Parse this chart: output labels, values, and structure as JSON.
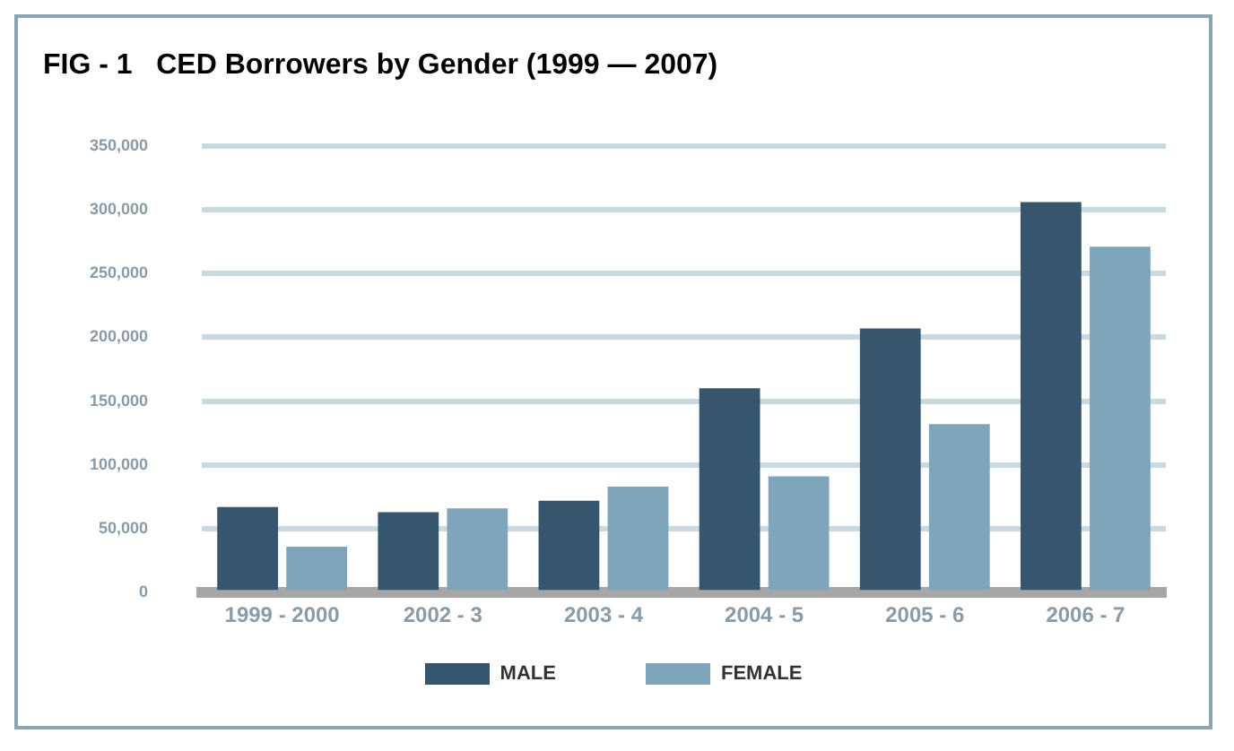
{
  "chart_data": {
    "type": "bar",
    "title": "FIG - 1   CED Borrowers by Gender (1999 — 2007)",
    "categories": [
      "1999 - 2000",
      "2002 - 3",
      "2003 - 4",
      "2004 - 5",
      "2005 - 6",
      "2006 - 7"
    ],
    "series": [
      {
        "name": "MALE",
        "color": "#36556e",
        "values": [
          67000,
          63000,
          72000,
          160000,
          207000,
          306000
        ]
      },
      {
        "name": "FEMALE",
        "color": "#7fa5bb",
        "values": [
          36000,
          66000,
          83000,
          91000,
          132000,
          271000
        ]
      }
    ],
    "ylim": [
      0,
      350000
    ],
    "yticks": [
      0,
      {
        "value": 50000,
        "label": "50,000"
      },
      {
        "value": 100000,
        "label": "100,000"
      },
      {
        "value": 150000,
        "label": "150,000"
      },
      {
        "value": 200000,
        "label": "200,000"
      },
      {
        "value": 250000,
        "label": "250,000"
      },
      {
        "value": 300000,
        "label": "300,000"
      },
      {
        "value": 350000,
        "label": "350,000"
      }
    ],
    "grid": "y",
    "legend": "bottom"
  }
}
